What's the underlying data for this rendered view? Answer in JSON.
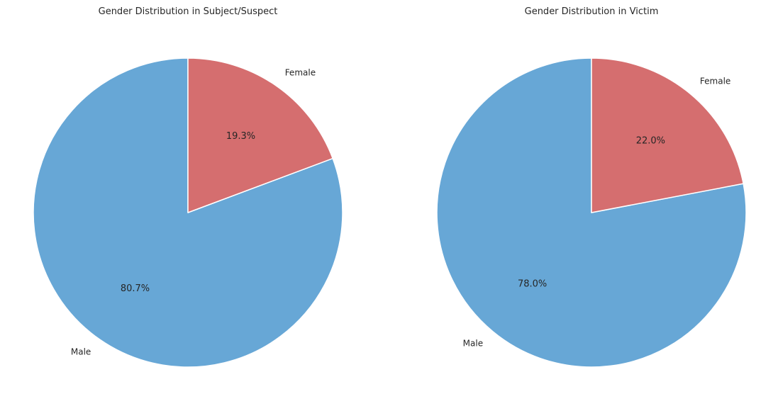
{
  "chart_data": [
    {
      "type": "pie",
      "title": "Gender Distribution in Subject/Suspect",
      "labels": [
        "Male",
        "Female"
      ],
      "values": [
        80.7,
        19.3
      ],
      "value_labels": [
        "80.7%",
        "19.3%"
      ],
      "colors": [
        "#67a7d6",
        "#d56e6f"
      ],
      "start_angle": 90,
      "direction": "counterclockwise"
    },
    {
      "type": "pie",
      "title": "Gender Distribution in Victim",
      "labels": [
        "Male",
        "Female"
      ],
      "values": [
        78.0,
        22.0
      ],
      "value_labels": [
        "78.0%",
        "22.0%"
      ],
      "colors": [
        "#67a7d6",
        "#d56e6f"
      ],
      "start_angle": 90,
      "direction": "counterclockwise"
    }
  ]
}
